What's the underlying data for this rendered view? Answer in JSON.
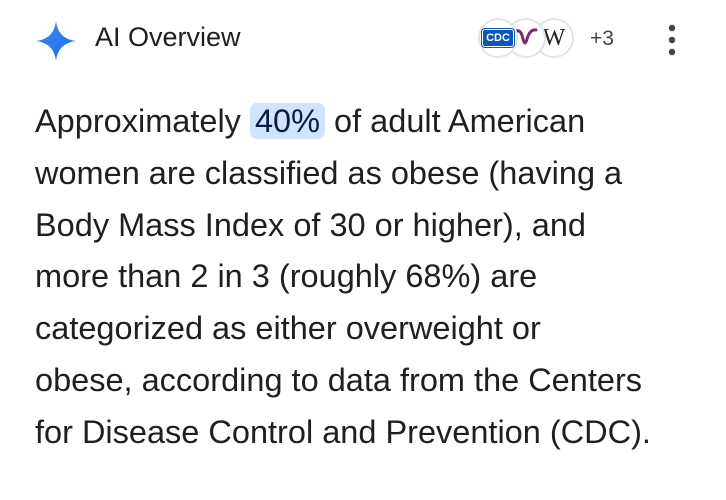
{
  "header": {
    "title": "AI Overview",
    "sources": {
      "cdc": "CDC",
      "wiki": "W",
      "more": "+3"
    }
  },
  "paragraph": {
    "first_line": {
      "before": "Approximately",
      "highlight": "40%",
      "after": "of adult American"
    },
    "lines": [
      "women are classified as obese (having a",
      "Body Mass Index of 30 or higher), and",
      "more than 2 in 3 (roughly 68%) are",
      "categorized as either overweight or",
      "obese, according to data from the Centers",
      "for Disease Control and Prevention (CDC)."
    ]
  }
}
